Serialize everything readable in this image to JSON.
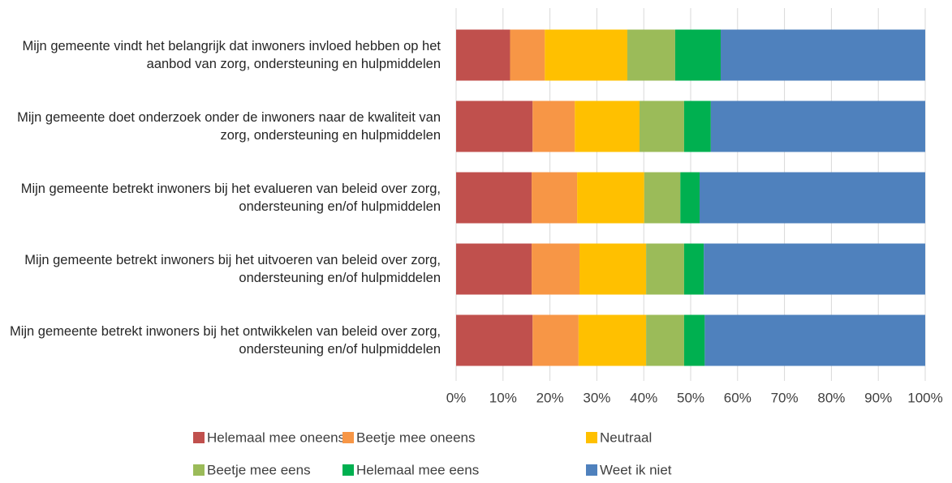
{
  "chart_data": {
    "type": "stacked_barh",
    "categories": [
      "Mijn gemeente vindt het belangrijk dat inwoners invloed hebben op het aanbod van zorg, ondersteuning en hulpmiddelen",
      "Mijn gemeente doet onderzoek onder de inwoners naar de kwaliteit van zorg, ondersteuning en hulpmiddelen",
      "Mijn gemeente betrekt inwoners bij het evalueren van beleid over zorg, ondersteuning en/of hulpmiddelen",
      "Mijn gemeente betrekt inwoners bij het uitvoeren van beleid over zorg, ondersteuning en/of hulpmiddelen",
      "Mijn gemeente betrekt inwoners bij het ontwikkelen van beleid over zorg, ondersteuning en/of hulpmiddelen"
    ],
    "series": [
      {
        "name": "Helemaal mee oneens",
        "color": "#c0504d",
        "values": [
          11.5,
          16.3,
          16.1,
          16.1,
          16.3
        ]
      },
      {
        "name": "Beetje mee oneens",
        "color": "#f79646",
        "values": [
          7.4,
          9.0,
          9.7,
          10.2,
          9.8
        ]
      },
      {
        "name": "Neutraal",
        "color": "#ffc000",
        "values": [
          17.6,
          13.8,
          14.3,
          14.2,
          14.4
        ]
      },
      {
        "name": "Beetje mee eens",
        "color": "#9bbb59",
        "values": [
          10.2,
          9.5,
          7.7,
          8.1,
          8.1
        ]
      },
      {
        "name": "Helemaal mee eens",
        "color": "#00b050",
        "values": [
          9.7,
          5.7,
          4.1,
          4.2,
          4.4
        ]
      },
      {
        "name": "Weet ik niet",
        "color": "#4f81bd",
        "values": [
          43.6,
          45.7,
          48.1,
          47.2,
          47.0
        ]
      }
    ],
    "xlim": [
      0,
      100
    ],
    "xticks": [
      {
        "value": 0,
        "label": "0%"
      },
      {
        "value": 10,
        "label": "10%"
      },
      {
        "value": 20,
        "label": "20%"
      },
      {
        "value": 30,
        "label": "30%"
      },
      {
        "value": 40,
        "label": "40%"
      },
      {
        "value": 50,
        "label": "50%"
      },
      {
        "value": 60,
        "label": "60%"
      },
      {
        "value": 70,
        "label": "70%"
      },
      {
        "value": 80,
        "label": "80%"
      },
      {
        "value": 90,
        "label": "90%"
      },
      {
        "value": 100,
        "label": "100%"
      }
    ],
    "grid": true,
    "legend": "bottom"
  }
}
